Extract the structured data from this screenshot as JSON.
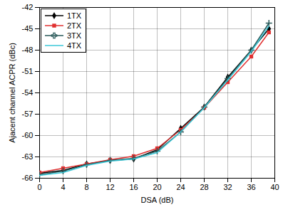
{
  "chart_data": {
    "type": "line",
    "x_label": "DSA (dB)",
    "y_label": "Ajacent channel ACPR (dBc)",
    "x": [
      0,
      4,
      8,
      12,
      16,
      20,
      24,
      28,
      32,
      36,
      39
    ],
    "series": [
      {
        "name": "1TX",
        "color": "#000000",
        "marker": "diamond",
        "values": [
          -65.3,
          -64.9,
          -64.0,
          -63.5,
          -63.3,
          -62.0,
          -59.0,
          -56.0,
          -51.8,
          -48.0,
          -45.0
        ]
      },
      {
        "name": "2TX",
        "color": "#e03030",
        "marker": "square",
        "values": [
          -65.2,
          -64.6,
          -64.0,
          -63.4,
          -62.9,
          -61.8,
          -59.2,
          -56.1,
          -52.5,
          -48.9,
          -45.5
        ]
      },
      {
        "name": "3TX",
        "color": "#2a5a5a",
        "marker": "plus",
        "values": [
          -65.5,
          -65.0,
          -64.1,
          -63.5,
          -63.2,
          -62.2,
          -59.5,
          -56.0,
          -52.0,
          -48.0,
          -44.2
        ]
      },
      {
        "name": "4TX",
        "color": "#3cc8d8",
        "marker": "none",
        "values": [
          -65.6,
          -65.2,
          -64.2,
          -63.6,
          -63.3,
          -62.4,
          -59.5,
          -56.1,
          -52.2,
          -48.2,
          -44.6
        ]
      }
    ],
    "xlim": [
      0,
      40
    ],
    "xticks": [
      0,
      4,
      8,
      12,
      16,
      20,
      24,
      28,
      32,
      36,
      40
    ],
    "ylim": [
      -66,
      -42
    ],
    "yticks": [
      -66,
      -63,
      -60,
      -57,
      -54,
      -51,
      -48,
      -45,
      -42
    ],
    "grid": true,
    "legend": "top-left"
  }
}
